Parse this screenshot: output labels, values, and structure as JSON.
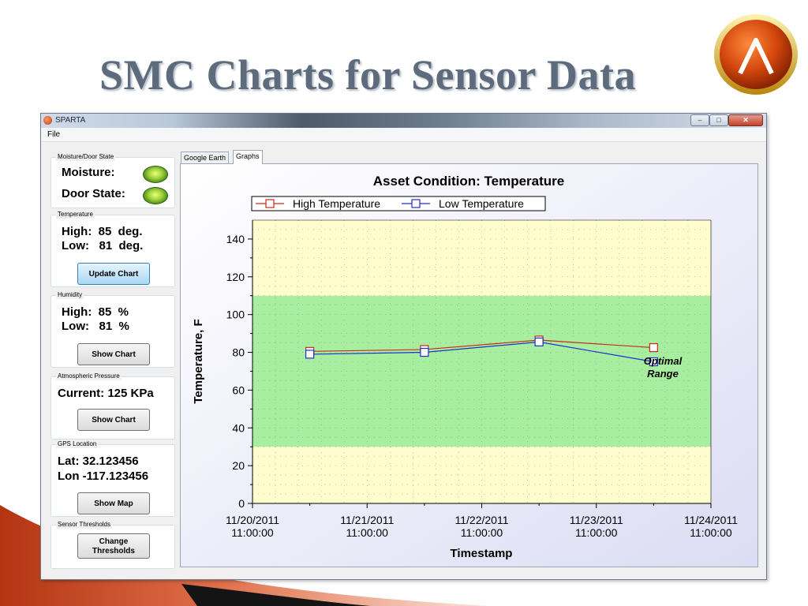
{
  "slide": {
    "title": "SMC Charts for Sensor Data"
  },
  "window": {
    "title": "SPARTA",
    "menu": [
      "File"
    ]
  },
  "groups": {
    "moisture_door": {
      "label": "Moisture/Door State",
      "moisture_label": "Moisture:",
      "door_label": "Door State:"
    },
    "temperature": {
      "label": "Temperature",
      "high_line": "High:  85  deg.",
      "low_line": "Low:   81  deg.",
      "button": "Update Chart"
    },
    "humidity": {
      "label": "Humidity",
      "high_line": "High:  85  %",
      "low_line": "Low:   81  %",
      "button": "Show Chart"
    },
    "pressure": {
      "label": "Atmospheric Pressure",
      "current_line": "Current: 125 KPa",
      "button": "Show Chart"
    },
    "gps": {
      "label": "GPS Location",
      "lat_line": "Lat: 32.123456",
      "lon_line": "Lon -117.123456",
      "button": "Show Map"
    },
    "thresholds": {
      "label": "Sensor Thresholds",
      "button": "Change\nThresholds"
    }
  },
  "tabs": [
    {
      "label": "Google Earth",
      "selected": false
    },
    {
      "label": "Graphs",
      "selected": true
    }
  ],
  "chart_data": {
    "type": "line",
    "title": "Asset Condition: Temperature",
    "xlabel": "Timestamp",
    "ylabel": "Temperature, F",
    "ylim": [
      0,
      150
    ],
    "yticks": [
      0,
      20,
      40,
      60,
      80,
      100,
      120,
      140
    ],
    "xlim": [
      "2011-11-20 11:00:00",
      "2011-11-24 11:00:00"
    ],
    "xticks": [
      [
        "11/20/2011",
        "11:00:00"
      ],
      [
        "11/21/2011",
        "11:00:00"
      ],
      [
        "11/22/2011",
        "11:00:00"
      ],
      [
        "11/23/2011",
        "11:00:00"
      ],
      [
        "11/24/2011",
        "11:00:00"
      ]
    ],
    "x": [
      "2011-11-20 23:00:00",
      "2011-11-21 23:00:00",
      "2011-11-22 23:00:00",
      "2011-11-23 23:00:00"
    ],
    "series": [
      {
        "name": "High Temperature",
        "color": "#cc2a1a",
        "values": [
          80.5,
          81.5,
          86.5,
          82.5
        ]
      },
      {
        "name": "Low Temperature",
        "color": "#1f2fd0",
        "values": [
          79,
          80,
          85.5,
          75
        ]
      }
    ],
    "optimal_range": {
      "label": "Optimal Range",
      "from": 30,
      "to": 110,
      "color": "#a8eea0"
    },
    "outside_color": "#fffccd",
    "legend": "top",
    "grid": true
  }
}
